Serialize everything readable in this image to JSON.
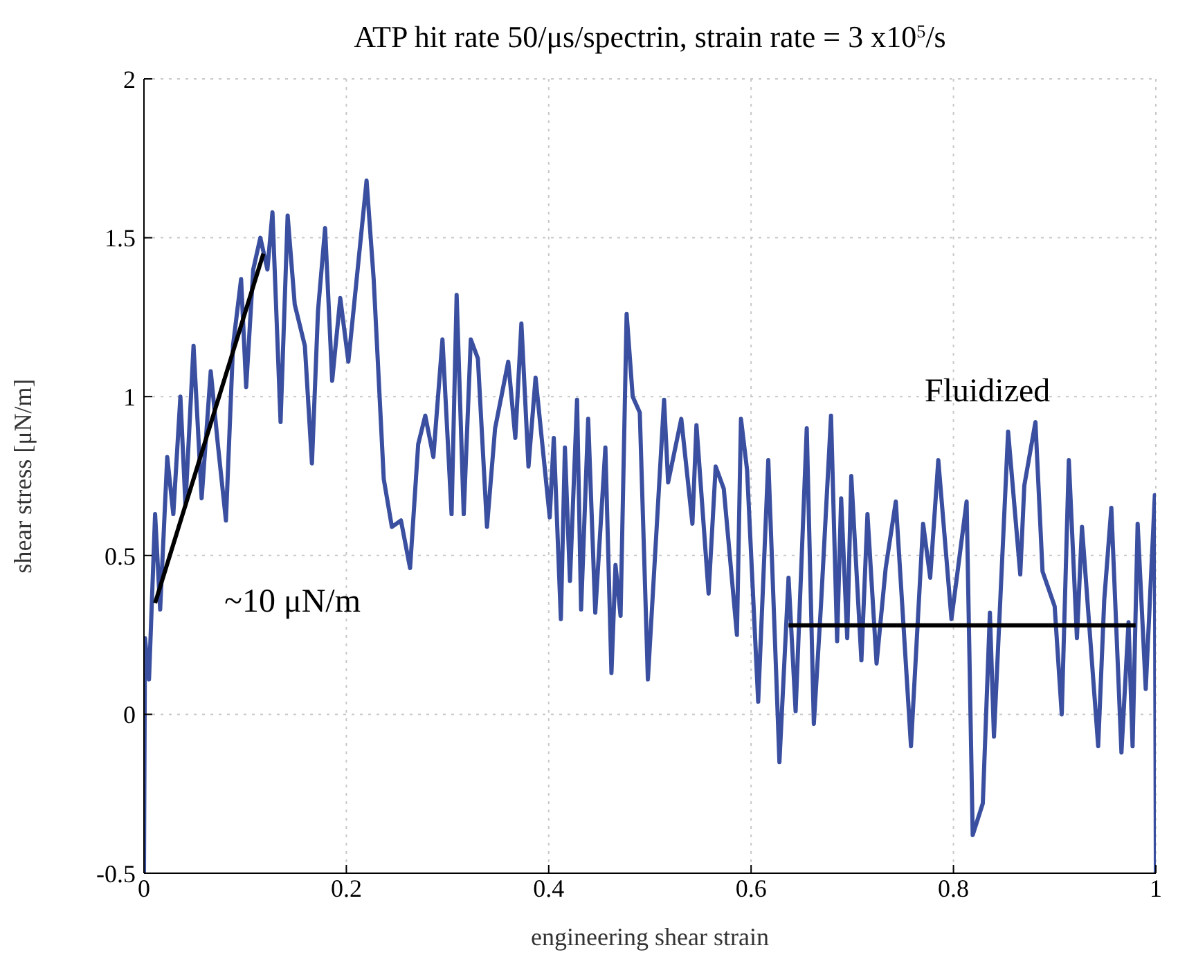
{
  "chart_data": {
    "type": "line",
    "title": "ATP hit rate 50/μs/spectrin, strain rate = 3 x10$^{5}$/s",
    "xlabel": "engineering shear strain",
    "ylabel": "shear stress [μN/m]",
    "xlim": [
      0,
      1
    ],
    "xticks": [
      0,
      0.2,
      0.4,
      0.6,
      0.8,
      1
    ],
    "ylim": [
      -0.5,
      2
    ],
    "yticks": [
      -0.5,
      0,
      0.5,
      1,
      1.5,
      2
    ],
    "grid": true,
    "marker": "none",
    "line_style": "solid",
    "annotations": [
      "~10 μN/m",
      "Fluidized"
    ],
    "series": [
      {
        "color": "#3a4fa0",
        "x": [
          0,
          0.001,
          0.005,
          0.011,
          0.016,
          0.023,
          0.029,
          0.036,
          0.041,
          0.049,
          0.057,
          0.066,
          0.073,
          0.081,
          0.088,
          0.096,
          0.101,
          0.108,
          0.115,
          0.122,
          0.127,
          0.135,
          0.142,
          0.149,
          0.159,
          0.166,
          0.172,
          0.179,
          0.186,
          0.194,
          0.202,
          0.22,
          0.227,
          0.237,
          0.245,
          0.254,
          0.263,
          0.271,
          0.278,
          0.286,
          0.295,
          0.304,
          0.309,
          0.316,
          0.323,
          0.33,
          0.339,
          0.347,
          0.36,
          0.367,
          0.373,
          0.38,
          0.387,
          0.401,
          0.405,
          0.412,
          0.416,
          0.421,
          0.428,
          0.432,
          0.439,
          0.446,
          0.456,
          0.462,
          0.466,
          0.471,
          0.477,
          0.483,
          0.49,
          0.498,
          0.514,
          0.518,
          0.531,
          0.542,
          0.546,
          0.558,
          0.565,
          0.573,
          0.586,
          0.59,
          0.596,
          0.607,
          0.617,
          0.628,
          0.637,
          0.644,
          0.655,
          0.662,
          0.669,
          0.679,
          0.685,
          0.689,
          0.695,
          0.699,
          0.709,
          0.715,
          0.724,
          0.733,
          0.743,
          0.758,
          0.77,
          0.777,
          0.785,
          0.798,
          0.813,
          0.819,
          0.829,
          0.836,
          0.84,
          0.854,
          0.866,
          0.87,
          0.881,
          0.888,
          0.9,
          0.907,
          0.914,
          0.922,
          0.927,
          0.943,
          0.949,
          0.956,
          0.966,
          0.973,
          0.977,
          0.982,
          0.99,
          0.999,
          1
        ],
        "values": [
          -0.5,
          0.24,
          0.11,
          0.63,
          0.33,
          0.81,
          0.63,
          1.0,
          0.66,
          1.16,
          0.68,
          1.08,
          0.85,
          0.61,
          1.16,
          1.37,
          1.03,
          1.4,
          1.5,
          1.4,
          1.58,
          0.92,
          1.57,
          1.29,
          1.16,
          0.79,
          1.27,
          1.53,
          1.05,
          1.31,
          1.11,
          1.68,
          1.37,
          0.74,
          0.59,
          0.61,
          0.46,
          0.85,
          0.94,
          0.81,
          1.18,
          0.63,
          1.32,
          0.63,
          1.18,
          1.12,
          0.59,
          0.9,
          1.11,
          0.87,
          1.23,
          0.78,
          1.06,
          0.62,
          0.87,
          0.3,
          0.84,
          0.42,
          0.99,
          0.33,
          0.93,
          0.32,
          0.84,
          0.13,
          0.47,
          0.31,
          1.26,
          1.0,
          0.95,
          0.11,
          0.99,
          0.73,
          0.93,
          0.6,
          0.91,
          0.38,
          0.78,
          0.71,
          0.25,
          0.93,
          0.77,
          0.04,
          0.8,
          -0.15,
          0.43,
          0.01,
          0.9,
          -0.03,
          0.34,
          0.94,
          0.23,
          0.68,
          0.24,
          0.75,
          0.17,
          0.63,
          0.16,
          0.46,
          0.67,
          -0.1,
          0.6,
          0.43,
          0.8,
          0.3,
          0.67,
          -0.38,
          -0.28,
          0.32,
          -0.07,
          0.89,
          0.44,
          0.72,
          0.92,
          0.45,
          0.34,
          0.0,
          0.8,
          0.24,
          0.59,
          -0.1,
          0.36,
          0.65,
          -0.12,
          0.29,
          -0.1,
          0.6,
          0.08,
          0.69,
          -0.5
        ]
      },
      {
        "color": "#000000",
        "x": [
          0.011,
          0.118
        ],
        "values": [
          0.35,
          1.45
        ]
      },
      {
        "color": "#000000",
        "x": [
          0.637,
          0.98
        ],
        "values": [
          0.28,
          0.28
        ]
      }
    ]
  }
}
